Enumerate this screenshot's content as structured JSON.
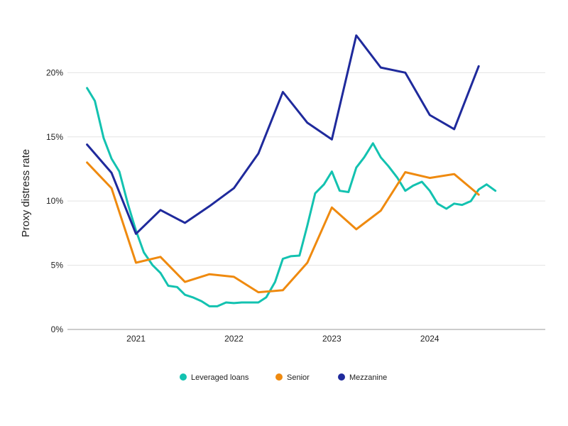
{
  "chart_data": {
    "type": "line",
    "ylabel": "Proxy distress rate",
    "xlabel": "",
    "title": "",
    "x_ticks": [
      "2021",
      "2022",
      "2023",
      "2024"
    ],
    "y_ticks": [
      "0%",
      "5%",
      "10%",
      "15%",
      "20%"
    ],
    "ylim": [
      0,
      24
    ],
    "xlim": [
      2020.3,
      2025.18
    ],
    "grid": "horizontal",
    "legend_position": "bottom-center",
    "series": [
      {
        "name": "Leveraged loans",
        "color": "#13c2b0",
        "points": [
          [
            2020.5,
            18.8
          ],
          [
            2020.58,
            17.8
          ],
          [
            2020.67,
            14.9
          ],
          [
            2020.75,
            13.3
          ],
          [
            2020.83,
            12.3
          ],
          [
            2020.92,
            9.7
          ],
          [
            2021.0,
            7.7
          ],
          [
            2021.08,
            6.0
          ],
          [
            2021.17,
            5.0
          ],
          [
            2021.25,
            4.4
          ],
          [
            2021.33,
            3.4
          ],
          [
            2021.42,
            3.3
          ],
          [
            2021.5,
            2.7
          ],
          [
            2021.58,
            2.5
          ],
          [
            2021.67,
            2.2
          ],
          [
            2021.75,
            1.8
          ],
          [
            2021.83,
            1.8
          ],
          [
            2021.92,
            2.1
          ],
          [
            2022.0,
            2.05
          ],
          [
            2022.08,
            2.1
          ],
          [
            2022.17,
            2.1
          ],
          [
            2022.25,
            2.1
          ],
          [
            2022.33,
            2.5
          ],
          [
            2022.42,
            3.7
          ],
          [
            2022.5,
            5.5
          ],
          [
            2022.58,
            5.7
          ],
          [
            2022.67,
            5.75
          ],
          [
            2022.75,
            8.1
          ],
          [
            2022.83,
            10.6
          ],
          [
            2022.92,
            11.3
          ],
          [
            2023.0,
            12.3
          ],
          [
            2023.08,
            10.8
          ],
          [
            2023.17,
            10.7
          ],
          [
            2023.25,
            12.6
          ],
          [
            2023.33,
            13.4
          ],
          [
            2023.42,
            14.5
          ],
          [
            2023.5,
            13.4
          ],
          [
            2023.58,
            12.7
          ],
          [
            2023.67,
            11.8
          ],
          [
            2023.75,
            10.8
          ],
          [
            2023.83,
            11.2
          ],
          [
            2023.92,
            11.5
          ],
          [
            2024.0,
            10.8
          ],
          [
            2024.08,
            9.8
          ],
          [
            2024.17,
            9.4
          ],
          [
            2024.25,
            9.8
          ],
          [
            2024.33,
            9.7
          ],
          [
            2024.42,
            10.0
          ],
          [
            2024.5,
            10.9
          ],
          [
            2024.58,
            11.3
          ],
          [
            2024.67,
            10.8
          ]
        ]
      },
      {
        "name": "Senior",
        "color": "#ef8a0f",
        "points": [
          [
            2020.5,
            13.0
          ],
          [
            2020.75,
            11.0
          ],
          [
            2021.0,
            5.2
          ],
          [
            2021.25,
            5.65
          ],
          [
            2021.5,
            3.7
          ],
          [
            2021.75,
            4.3
          ],
          [
            2022.0,
            4.1
          ],
          [
            2022.25,
            2.9
          ],
          [
            2022.5,
            3.05
          ],
          [
            2022.75,
            5.2
          ],
          [
            2023.0,
            9.5
          ],
          [
            2023.25,
            7.8
          ],
          [
            2023.5,
            9.25
          ],
          [
            2023.75,
            12.25
          ],
          [
            2024.0,
            11.8
          ],
          [
            2024.25,
            12.1
          ],
          [
            2024.5,
            10.5
          ]
        ]
      },
      {
        "name": "Mezzanine",
        "color": "#1f2a9c",
        "points": [
          [
            2020.5,
            14.4
          ],
          [
            2020.75,
            12.2
          ],
          [
            2021.0,
            7.45
          ],
          [
            2021.25,
            9.3
          ],
          [
            2021.5,
            8.3
          ],
          [
            2021.75,
            9.6
          ],
          [
            2022.0,
            11.0
          ],
          [
            2022.25,
            13.7
          ],
          [
            2022.5,
            18.5
          ],
          [
            2022.75,
            16.1
          ],
          [
            2023.0,
            14.8
          ],
          [
            2023.25,
            22.9
          ],
          [
            2023.5,
            20.4
          ],
          [
            2023.75,
            20.0
          ],
          [
            2024.0,
            16.7
          ],
          [
            2024.25,
            15.6
          ],
          [
            2024.5,
            20.5
          ]
        ]
      }
    ]
  }
}
